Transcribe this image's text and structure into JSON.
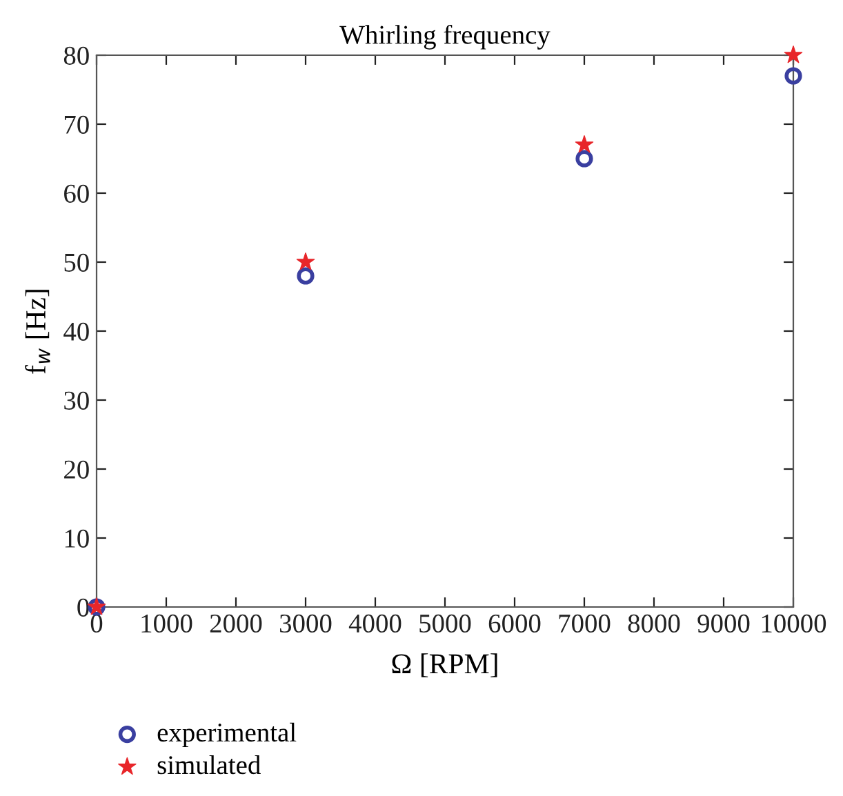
{
  "chart_data": {
    "type": "scatter",
    "title": "Whirling frequency",
    "xlabel": "Ω [RPM]",
    "ylabel": "f$_{w}$ [Hz]",
    "x": [
      0,
      3000,
      7000,
      10000
    ],
    "series": [
      {
        "name": "experimental",
        "color": "#3a3fa0",
        "marker": "circle",
        "values": [
          0,
          48,
          65,
          77
        ]
      },
      {
        "name": "simulated",
        "color": "#e8262a",
        "marker": "star",
        "values": [
          0,
          50,
          67,
          80
        ]
      }
    ],
    "xlim": [
      0,
      10000
    ],
    "xticks": [
      0,
      1000,
      2000,
      3000,
      4000,
      5000,
      6000,
      7000,
      8000,
      9000,
      10000
    ],
    "ylim": [
      0,
      80
    ],
    "yticks": [
      0,
      10,
      20,
      30,
      40,
      50,
      60,
      70,
      80
    ],
    "grid": false,
    "legend": "bottom left"
  }
}
